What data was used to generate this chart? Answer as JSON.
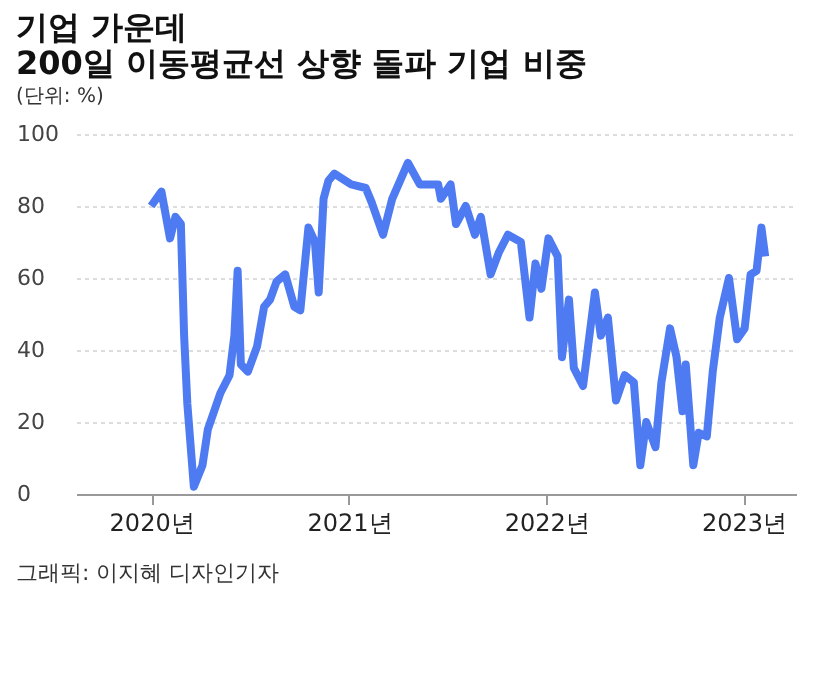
{
  "chart_data": {
    "type": "line",
    "title": [
      "기업 가운데",
      "200일 이동평균선 상향 돌파 기업 비중"
    ],
    "subtitle": "(단위: %)",
    "annotations": [
      "그래픽: 이지혜 디자인기자"
    ],
    "x": [
      "2020-01-01",
      "2020-01-20",
      "2020-02-05",
      "2020-02-15",
      "2020-02-25",
      "2020-03-02",
      "2020-03-08",
      "2020-03-20",
      "2020-04-05",
      "2020-04-15",
      "2020-05-08",
      "2020-05-25",
      "2020-06-03",
      "2020-06-09",
      "2020-06-15",
      "2020-06-28",
      "2020-07-15",
      "2020-07-28",
      "2020-08-08",
      "2020-08-20",
      "2020-09-05",
      "2020-09-22",
      "2020-10-03",
      "2020-10-18",
      "2020-10-30",
      "2020-11-06",
      "2020-11-15",
      "2020-11-24",
      "2020-12-05",
      "2021-01-05",
      "2021-02-01",
      "2021-02-12",
      "2021-03-05",
      "2021-03-22",
      "2021-04-20",
      "2021-05-12",
      "2021-06-15",
      "2021-06-20",
      "2021-07-08",
      "2021-07-18",
      "2021-08-05",
      "2021-08-22",
      "2021-09-02",
      "2021-09-20",
      "2021-10-05",
      "2021-10-22",
      "2021-11-15",
      "2021-12-01",
      "2021-12-12",
      "2021-12-23",
      "2022-01-05",
      "2022-01-22",
      "2022-01-30",
      "2022-02-12",
      "2022-02-21",
      "2022-03-10",
      "2022-04-01",
      "2022-04-12",
      "2022-04-25",
      "2022-05-10",
      "2022-05-26",
      "2022-06-12",
      "2022-06-24",
      "2022-07-05",
      "2022-07-22",
      "2022-08-02",
      "2022-08-18",
      "2022-08-30",
      "2022-09-10",
      "2022-09-16",
      "2022-09-30",
      "2022-10-10",
      "2022-10-25",
      "2022-11-05",
      "2022-11-18",
      "2022-12-05",
      "2022-12-20",
      "2023-01-03",
      "2023-01-14",
      "2023-01-25",
      "2023-02-03",
      "2023-02-10"
    ],
    "series": [
      {
        "color": "#4f7bf2",
        "values": [
          80,
          84,
          71,
          77,
          75,
          44,
          25,
          2,
          8,
          18,
          28,
          33,
          44,
          62,
          36,
          34,
          41,
          52,
          54,
          59,
          61,
          52,
          51,
          74,
          70,
          56,
          82,
          87,
          89,
          86,
          85,
          81,
          72,
          82,
          92,
          86,
          86,
          82,
          86,
          75,
          80,
          72,
          77,
          61,
          67,
          72,
          70,
          49,
          64,
          57,
          71,
          66,
          38,
          54,
          35,
          30,
          56,
          44,
          49,
          26,
          33,
          31,
          8,
          20,
          13,
          31,
          46,
          38,
          23,
          36,
          8,
          17,
          16,
          34,
          49,
          60,
          43,
          46,
          61,
          62,
          74,
          66
        ]
      }
    ],
    "xlim": [
      "2019-08-15",
      "2023-04-08"
    ],
    "xticks": [
      {
        "value": "2020",
        "label": "2020년"
      },
      {
        "value": "2021",
        "label": "2021년"
      },
      {
        "value": "2022",
        "label": "2022년"
      },
      {
        "value": "2023",
        "label": "2023년"
      }
    ],
    "ylim": [
      0,
      100
    ],
    "yticks": [
      0,
      20,
      40,
      60,
      80,
      100
    ],
    "grid": "y",
    "line_style": "solid"
  }
}
